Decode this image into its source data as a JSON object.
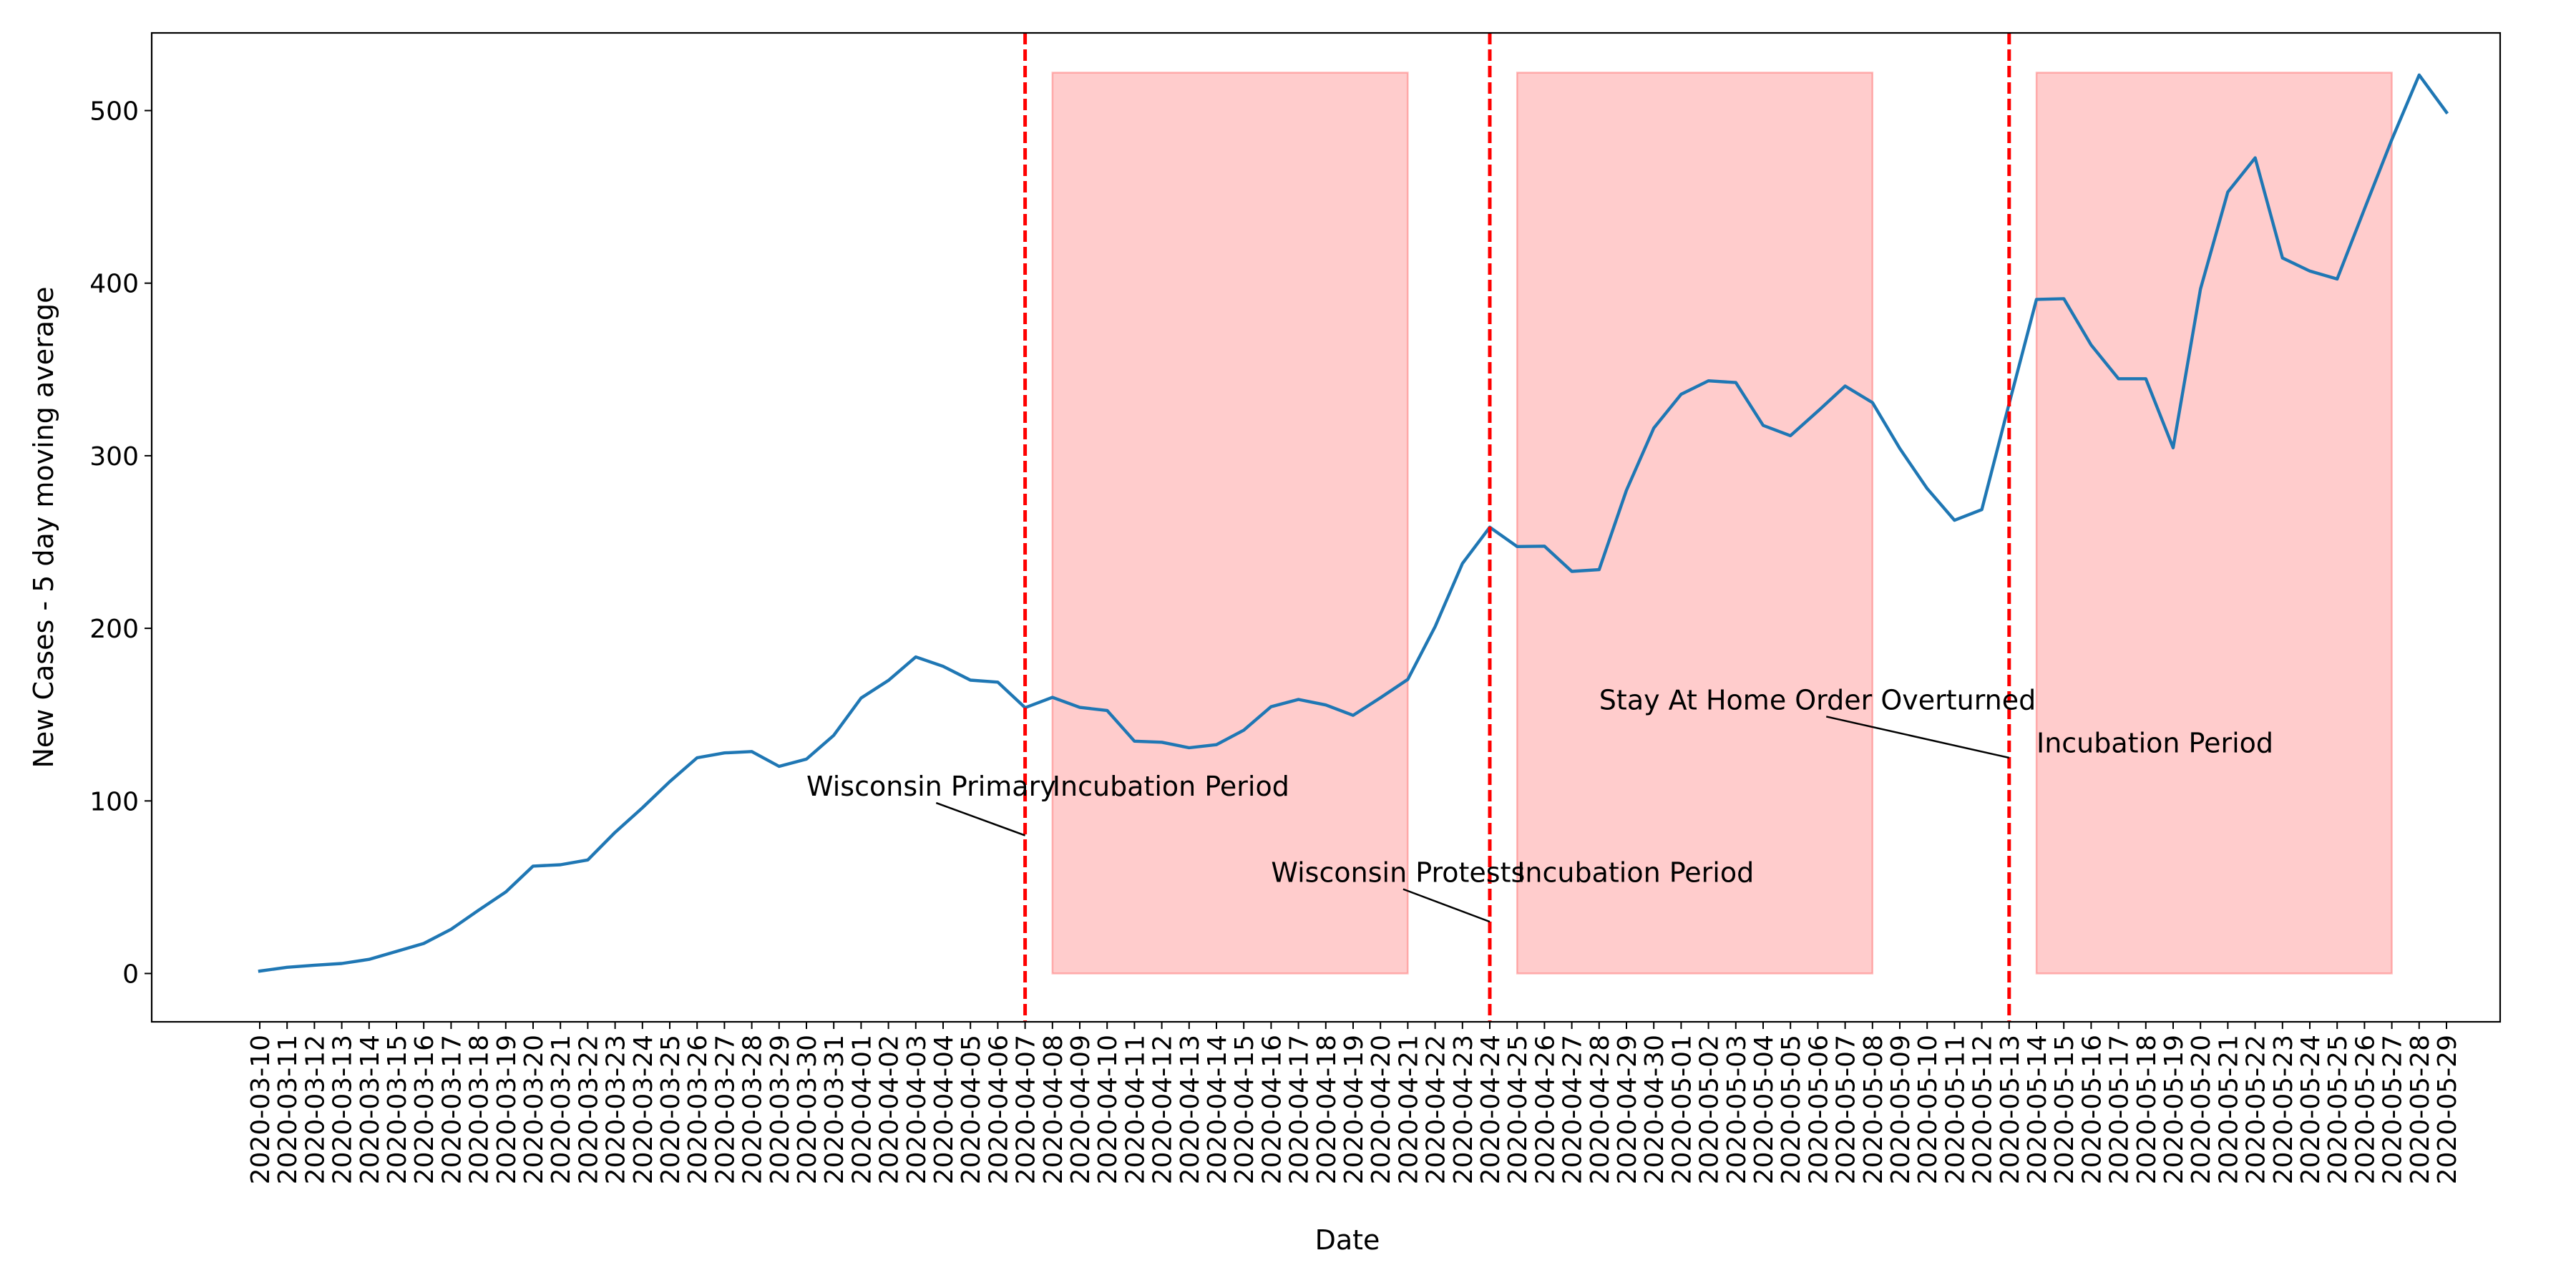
{
  "chart_data": {
    "type": "line",
    "xlabel": "Date",
    "ylabel": "New Cases - 5 day moving average",
    "ylim": [
      -28,
      545
    ],
    "yticks": [
      0,
      100,
      200,
      300,
      400,
      500
    ],
    "grid": false,
    "x": [
      "2020-03-10",
      "2020-03-11",
      "2020-03-12",
      "2020-03-13",
      "2020-03-14",
      "2020-03-15",
      "2020-03-16",
      "2020-03-17",
      "2020-03-18",
      "2020-03-19",
      "2020-03-20",
      "2020-03-21",
      "2020-03-22",
      "2020-03-23",
      "2020-03-24",
      "2020-03-25",
      "2020-03-26",
      "2020-03-27",
      "2020-03-28",
      "2020-03-29",
      "2020-03-30",
      "2020-03-31",
      "2020-04-01",
      "2020-04-02",
      "2020-04-03",
      "2020-04-04",
      "2020-04-05",
      "2020-04-06",
      "2020-04-07",
      "2020-04-08",
      "2020-04-09",
      "2020-04-10",
      "2020-04-11",
      "2020-04-12",
      "2020-04-13",
      "2020-04-14",
      "2020-04-15",
      "2020-04-16",
      "2020-04-17",
      "2020-04-18",
      "2020-04-19",
      "2020-04-20",
      "2020-04-21",
      "2020-04-22",
      "2020-04-23",
      "2020-04-24",
      "2020-04-25",
      "2020-04-26",
      "2020-04-27",
      "2020-04-28",
      "2020-04-29",
      "2020-04-30",
      "2020-05-01",
      "2020-05-02",
      "2020-05-03",
      "2020-05-04",
      "2020-05-05",
      "2020-05-06",
      "2020-05-07",
      "2020-05-08",
      "2020-05-09",
      "2020-05-10",
      "2020-05-11",
      "2020-05-12",
      "2020-05-13",
      "2020-05-14",
      "2020-05-15",
      "2020-05-16",
      "2020-05-17",
      "2020-05-18",
      "2020-05-19",
      "2020-05-20",
      "2020-05-21",
      "2020-05-22",
      "2020-05-23",
      "2020-05-24",
      "2020-05-25",
      "2020-05-26",
      "2020-05-27",
      "2020-05-28",
      "2020-05-29"
    ],
    "series": [
      {
        "color": "#1f77b4",
        "values": [
          1.4,
          3.6,
          4.8,
          5.8,
          8.2,
          12.8,
          17.4,
          25.6,
          36.6,
          47.2,
          62.2,
          63,
          65.8,
          81.8,
          96,
          111.2,
          125,
          127.8,
          128.6,
          120,
          124.2,
          138,
          159.6,
          169.8,
          183.4,
          178,
          170,
          168.8,
          154,
          160,
          154.2,
          152.4,
          134.6,
          134,
          130.8,
          132.6,
          141,
          154.6,
          158.8,
          155.6,
          149.6,
          159.8,
          170.4,
          201,
          237.6,
          258.6,
          247.4,
          247.6,
          233,
          234,
          280,
          316,
          335.6,
          343.4,
          342.4,
          317.6,
          311.6,
          325.8,
          340.4,
          330.8,
          304.2,
          281,
          262.6,
          268.8,
          330.2,
          390.6,
          391,
          364.2,
          344.6,
          344.6,
          304.6,
          396.6,
          452.8,
          472.6,
          414.6,
          407,
          402.4,
          443,
          483.2,
          520.6,
          499
        ]
      }
    ],
    "events": [
      {
        "date": "2020-04-07",
        "label": "Wisconsin Primary",
        "label_x": "2020-03-30",
        "label_y": 103,
        "arrow_y": 80
      },
      {
        "date": "2020-04-24",
        "label": "Wisconsin Protests",
        "label_x": "2020-04-16",
        "label_y": 53,
        "arrow_y": 30
      },
      {
        "date": "2020-05-13",
        "label": "Stay At Home Order Overturned",
        "label_x": "2020-04-28",
        "label_y": 153,
        "arrow_y": 125
      }
    ],
    "event_color": "#ff0000",
    "periods": [
      {
        "start": "2020-04-08",
        "end": "2020-04-21",
        "ymin": 0,
        "ymax": 522,
        "label": "Incubation Period",
        "label_y": 103
      },
      {
        "start": "2020-04-25",
        "end": "2020-05-08",
        "ymin": 0,
        "ymax": 522,
        "label": "Incubation Period",
        "label_y": 53
      },
      {
        "start": "2020-05-14",
        "end": "2020-05-27",
        "ymin": 0,
        "ymax": 522,
        "label": "Incubation Period",
        "label_y": 128
      }
    ],
    "period_fill": "#ff0000",
    "period_alpha": 0.2
  }
}
